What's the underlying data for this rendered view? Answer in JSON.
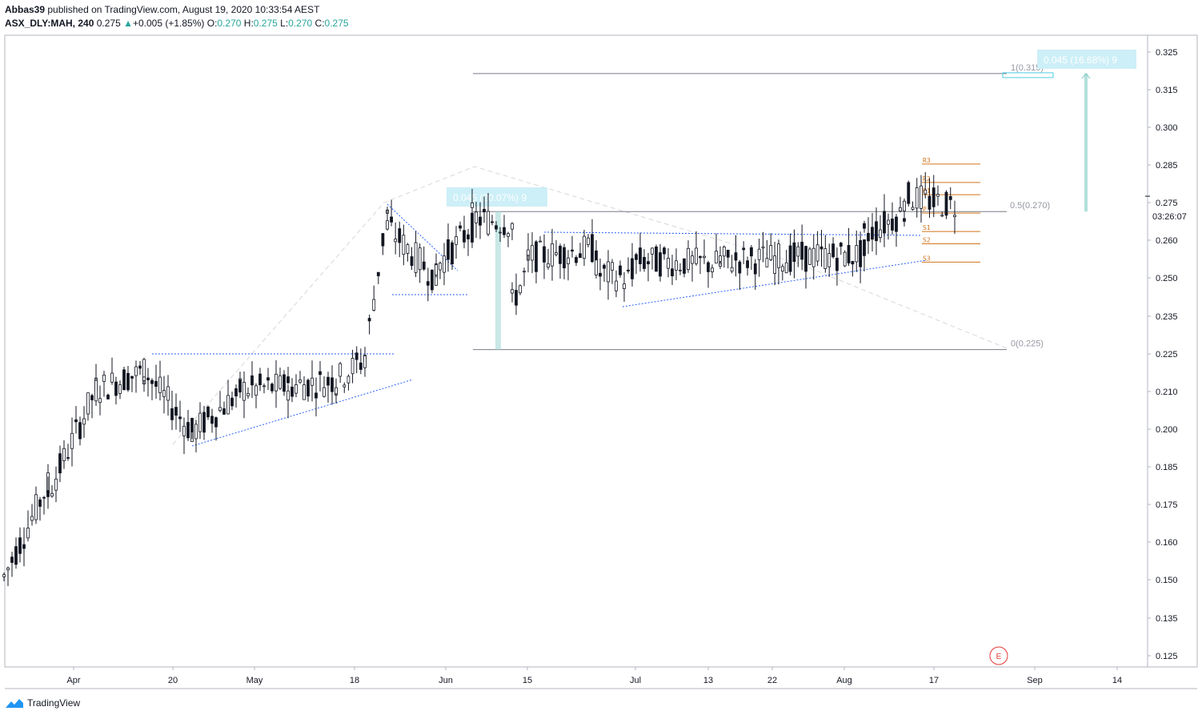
{
  "header": {
    "author": "Abbas39",
    "published_text": "published on TradingView.com, August 19, 2020 10:33:54 AEST",
    "symbol": "ASX_DLY:MAH, 240",
    "last": "0.275",
    "change_arrow": "▲",
    "change": "+0.005 (+1.85%)",
    "o_label": "O:",
    "o": "0.270",
    "h_label": "H:",
    "h": "0.275",
    "l_label": "L:",
    "l": "0.270",
    "c_label": "C:",
    "c": "0.275"
  },
  "footer": {
    "brand": "TradingView",
    "logo_icon": "tradingview-logo-icon"
  },
  "colors": {
    "candle": "#131722",
    "grid_border": "#b2b5be",
    "price_tag_bg": "#ffffff",
    "trendline": "#2962ff",
    "fib_line": "#787b86",
    "pivot": "#d1741b",
    "measure_bg": "#cdeff7",
    "measure_text": "#ffffff",
    "measure_bar": "#b2dfdb",
    "event_red": "#e53935"
  },
  "chart_data": {
    "type": "candlestick",
    "symbol": "ASX_DLY:MAH",
    "interval": "240",
    "x_ticks": [
      "Apr",
      "20",
      "May",
      "18",
      "Jun",
      "15",
      "Jul",
      "13",
      "22",
      "Aug",
      "17",
      "Sep",
      "14"
    ],
    "y_ticks": [
      "0.325",
      "0.315",
      "0.300",
      "0.285",
      "0.275",
      "0.260",
      "0.250",
      "0.235",
      "0.225",
      "0.210",
      "0.200",
      "0.185",
      "0.175",
      "0.160",
      "0.150",
      "0.135",
      "0.125"
    ],
    "ylim": [
      0.1215,
      0.3275
    ],
    "last_price": "0.275",
    "countdown": "03:26:07",
    "fib": {
      "top_label": "1(0.315)",
      "mid_label": "0.5(0.270)",
      "bottom_label": "0(0.225)",
      "top": 0.315,
      "mid": 0.27,
      "bottom": 0.225
    },
    "pivots": [
      {
        "name": "R3",
        "value": 0.2855
      },
      {
        "name": "R2",
        "value": 0.2795
      },
      {
        "name": "R1",
        "value": 0.2755
      },
      {
        "name": "P",
        "value": 0.2695
      },
      {
        "name": "S1",
        "value": 0.2635
      },
      {
        "name": "S2",
        "value": 0.2595
      },
      {
        "name": "S3",
        "value": 0.2535
      }
    ],
    "measures": [
      {
        "label": "0.045 (20.07%) 9",
        "from": 0.225,
        "to": 0.27
      },
      {
        "label": "0.045 (16.68%) 9",
        "from": 0.27,
        "to": 0.315
      }
    ],
    "event_marker": "E",
    "segments": [
      {
        "x_from": 5,
        "x_to": 60,
        "n": 12,
        "p_from": 0.151,
        "p_to": 0.181
      },
      {
        "x_from": 60,
        "x_to": 120,
        "n": 13,
        "p_from": 0.178,
        "p_to": 0.212
      },
      {
        "x_from": 120,
        "x_to": 180,
        "n": 13,
        "p_from": 0.212,
        "p_to": 0.218
      },
      {
        "x_from": 180,
        "x_to": 240,
        "n": 13,
        "p_from": 0.218,
        "p_to": 0.198
      },
      {
        "x_from": 240,
        "x_to": 300,
        "n": 13,
        "p_from": 0.198,
        "p_to": 0.211
      },
      {
        "x_from": 300,
        "x_to": 360,
        "n": 13,
        "p_from": 0.212,
        "p_to": 0.213
      },
      {
        "x_from": 360,
        "x_to": 420,
        "n": 13,
        "p_from": 0.213,
        "p_to": 0.215
      },
      {
        "x_from": 420,
        "x_to": 456,
        "n": 8,
        "p_from": 0.215,
        "p_to": 0.222
      },
      {
        "x_from": 456,
        "x_to": 484,
        "n": 6,
        "p_from": 0.223,
        "p_to": 0.27
      },
      {
        "x_from": 484,
        "x_to": 545,
        "n": 13,
        "p_from": 0.265,
        "p_to": 0.248
      },
      {
        "x_from": 545,
        "x_to": 590,
        "n": 10,
        "p_from": 0.252,
        "p_to": 0.265
      },
      {
        "x_from": 590,
        "x_to": 640,
        "n": 11,
        "p_from": 0.268,
        "p_to": 0.266
      },
      {
        "x_from": 640,
        "x_to": 660,
        "n": 5,
        "p_from": 0.24,
        "p_to": 0.252
      },
      {
        "x_from": 660,
        "x_to": 745,
        "n": 18,
        "p_from": 0.255,
        "p_to": 0.258
      },
      {
        "x_from": 745,
        "x_to": 790,
        "n": 10,
        "p_from": 0.25,
        "p_to": 0.248
      },
      {
        "x_from": 790,
        "x_to": 900,
        "n": 23,
        "p_from": 0.254,
        "p_to": 0.253
      },
      {
        "x_from": 900,
        "x_to": 1080,
        "n": 38,
        "p_from": 0.254,
        "p_to": 0.256
      },
      {
        "x_from": 1080,
        "x_to": 1130,
        "n": 11,
        "p_from": 0.262,
        "p_to": 0.27
      },
      {
        "x_from": 1130,
        "x_to": 1193,
        "n": 13,
        "p_from": 0.275,
        "p_to": 0.272
      }
    ],
    "drawn_trendlines": [
      {
        "from": [
          "20 (x=240)",
          0.192
        ],
        "to": [
          "x=516",
          0.218
        ]
      },
      {
        "from": [
          "x=190",
          0.22
        ],
        "to": [
          "x=492",
          0.22
        ]
      },
      {
        "from": [
          "x=484",
          0.274
        ],
        "to": [
          "x=572",
          0.251
        ]
      },
      {
        "from": [
          "x=490",
          0.239
        ],
        "to": [
          "x=584",
          0.239
        ]
      },
      {
        "from": [
          "x=680",
          0.262
        ],
        "to": [
          "x=1152",
          0.26
        ]
      },
      {
        "from": [
          "x=778",
          0.237
        ],
        "to": [
          "x=1158",
          0.254
        ]
      }
    ]
  }
}
